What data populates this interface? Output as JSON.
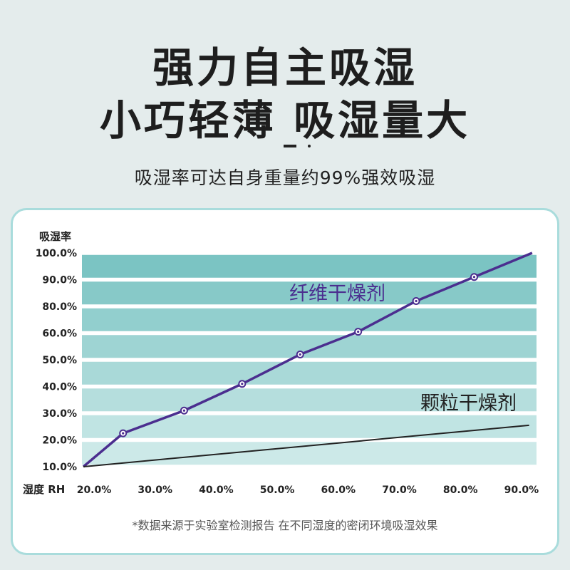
{
  "headline": {
    "line1": "强力自主吸湿",
    "line2": "小巧轻薄 吸湿量大"
  },
  "subtitle": "吸湿率可达自身重量约99%强效吸湿",
  "footnote": "*数据来源于实验室检测报告 在不同湿度的密闭环境吸湿效果",
  "colors": {
    "band_top": "#7bc4c3",
    "band_bottom": "#cce9e8",
    "fiber_line": "#4b2e8f",
    "granule_line": "#222222",
    "card_border": "#a9dcdc"
  },
  "chart_data": {
    "type": "line",
    "ylabel": "吸湿率",
    "xlabel": "湿度 RH",
    "x_ticks": [
      "20.0%",
      "30.0%",
      "40.0%",
      "50.0%",
      "60.0%",
      "70.0%",
      "80.0%",
      "90.0%"
    ],
    "y_ticks": [
      "100.0%",
      "90.0%",
      "80.0%",
      "60.0%",
      "50.0%",
      "40.0%",
      "30.0%",
      "20.0%",
      "10.0%"
    ],
    "grid": "horizontal bands",
    "series": [
      {
        "name": "纤维干燥剂",
        "x": [
          20,
          26.5,
          36.5,
          46,
          55.5,
          65,
          74.5,
          84,
          93.5
        ],
        "y": [
          10,
          22.5,
          31,
          41,
          52,
          61,
          82,
          91,
          100
        ],
        "markers": true
      },
      {
        "name": "颗粒干燥剂",
        "x": [
          20,
          93
        ],
        "y": [
          10,
          25.5
        ],
        "markers": false
      }
    ]
  }
}
